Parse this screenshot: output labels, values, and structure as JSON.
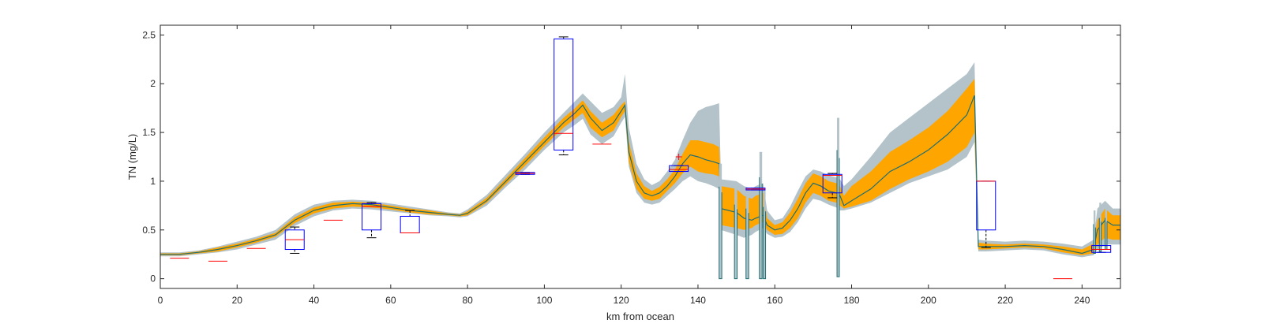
{
  "chart_data": {
    "type": "line",
    "xlabel": "km from ocean",
    "ylabel": "TN (mg/L)",
    "xlim": [
      0,
      250
    ],
    "ylim": [
      -0.1,
      2.6
    ],
    "xticks": [
      0,
      20,
      40,
      60,
      80,
      100,
      120,
      140,
      160,
      180,
      200,
      220,
      240
    ],
    "yticks": [
      0,
      0.5,
      1,
      1.5,
      2,
      2.5
    ],
    "ytick_labels": [
      "0",
      "0.5",
      "1",
      "1.5",
      "2",
      "2.5"
    ],
    "grid": false,
    "colors": {
      "outer_band": "#b3c3c9",
      "inner_band": "#ffa500",
      "median_line": "#1e6e72",
      "box": "#0000ff",
      "box_median": "#ff0000",
      "whisker": "#000000",
      "outlier": "#ff0000"
    },
    "model": {
      "x": [
        0,
        5,
        10,
        15,
        20,
        25,
        30,
        35,
        40,
        45,
        50,
        55,
        60,
        65,
        70,
        75,
        78,
        80,
        85,
        90,
        95,
        100,
        105,
        108,
        110,
        112,
        115,
        118,
        120,
        121,
        122,
        124,
        126,
        128,
        130,
        132,
        134,
        136,
        138,
        140,
        142,
        144,
        145.5,
        146,
        150,
        152,
        154,
        155,
        157,
        158,
        160,
        162,
        164,
        166,
        168,
        170,
        172,
        174,
        176,
        177,
        178,
        180,
        185,
        190,
        195,
        200,
        205,
        210,
        212,
        213,
        215,
        220,
        225,
        230,
        235,
        240,
        243,
        244,
        246,
        248,
        250
      ],
      "median": [
        0.25,
        0.25,
        0.27,
        0.3,
        0.34,
        0.39,
        0.45,
        0.6,
        0.7,
        0.75,
        0.77,
        0.76,
        0.73,
        0.7,
        0.68,
        0.66,
        0.65,
        0.67,
        0.8,
        1.0,
        1.2,
        1.4,
        1.6,
        1.7,
        1.78,
        1.65,
        1.52,
        1.6,
        1.72,
        1.78,
        1.3,
        1.0,
        0.88,
        0.85,
        0.88,
        0.95,
        1.05,
        1.18,
        1.27,
        1.25,
        1.22,
        1.2,
        1.18,
        0.72,
        0.68,
        0.62,
        0.6,
        0.62,
        0.65,
        0.55,
        0.5,
        0.52,
        0.6,
        0.72,
        0.88,
        0.98,
        0.95,
        0.9,
        0.88,
        0.85,
        0.75,
        0.8,
        0.92,
        1.1,
        1.2,
        1.32,
        1.48,
        1.68,
        1.88,
        0.33,
        0.33,
        0.33,
        0.34,
        0.33,
        0.3,
        0.26,
        0.3,
        0.5,
        0.6,
        0.55,
        0.55
      ],
      "inner_low": [
        0.24,
        0.24,
        0.26,
        0.28,
        0.32,
        0.37,
        0.43,
        0.57,
        0.67,
        0.72,
        0.74,
        0.73,
        0.71,
        0.68,
        0.66,
        0.65,
        0.64,
        0.65,
        0.78,
        0.97,
        1.16,
        1.36,
        1.55,
        1.64,
        1.7,
        1.55,
        1.45,
        1.52,
        1.66,
        1.72,
        1.2,
        0.92,
        0.82,
        0.8,
        0.82,
        0.9,
        0.98,
        1.08,
        1.15,
        1.1,
        1.08,
        1.07,
        1.05,
        0.55,
        0.52,
        0.5,
        0.52,
        0.55,
        0.58,
        0.5,
        0.45,
        0.46,
        0.52,
        0.62,
        0.78,
        0.88,
        0.85,
        0.8,
        0.78,
        0.75,
        0.72,
        0.74,
        0.8,
        0.92,
        1.02,
        1.1,
        1.2,
        1.35,
        1.5,
        0.3,
        0.3,
        0.31,
        0.32,
        0.31,
        0.27,
        0.24,
        0.26,
        0.35,
        0.42,
        0.4,
        0.4
      ],
      "inner_high": [
        0.26,
        0.26,
        0.28,
        0.32,
        0.36,
        0.41,
        0.47,
        0.63,
        0.73,
        0.78,
        0.79,
        0.78,
        0.75,
        0.72,
        0.7,
        0.67,
        0.66,
        0.69,
        0.83,
        1.03,
        1.24,
        1.45,
        1.65,
        1.75,
        1.83,
        1.72,
        1.6,
        1.68,
        1.78,
        1.82,
        1.4,
        1.08,
        0.95,
        0.9,
        0.94,
        1.02,
        1.12,
        1.28,
        1.42,
        1.42,
        1.4,
        1.38,
        1.35,
        0.95,
        0.92,
        0.85,
        0.82,
        0.85,
        0.88,
        0.62,
        0.55,
        0.58,
        0.68,
        0.82,
        0.98,
        1.08,
        1.05,
        1.0,
        0.98,
        0.95,
        0.85,
        0.95,
        1.1,
        1.3,
        1.42,
        1.55,
        1.72,
        1.95,
        2.05,
        0.37,
        0.36,
        0.35,
        0.36,
        0.35,
        0.33,
        0.3,
        0.36,
        0.6,
        0.72,
        0.65,
        0.65
      ],
      "outer_low": [
        0.23,
        0.23,
        0.25,
        0.27,
        0.3,
        0.35,
        0.4,
        0.54,
        0.64,
        0.7,
        0.72,
        0.71,
        0.69,
        0.67,
        0.65,
        0.64,
        0.63,
        0.64,
        0.75,
        0.94,
        1.12,
        1.32,
        1.5,
        1.58,
        1.64,
        1.48,
        1.38,
        1.46,
        1.6,
        1.66,
        1.15,
        0.88,
        0.78,
        0.76,
        0.78,
        0.85,
        0.92,
        1.0,
        1.05,
        1.0,
        0.98,
        0.95,
        0.92,
        0.5,
        0.45,
        0.42,
        0.45,
        0.48,
        0.52,
        0.46,
        0.42,
        0.43,
        0.48,
        0.58,
        0.72,
        0.82,
        0.8,
        0.76,
        0.73,
        0.7,
        0.7,
        0.72,
        0.78,
        0.88,
        0.98,
        1.05,
        1.12,
        1.25,
        1.4,
        0.28,
        0.28,
        0.29,
        0.3,
        0.29,
        0.25,
        0.22,
        0.24,
        0.3,
        0.35,
        0.35,
        0.35
      ],
      "outer_high": [
        0.27,
        0.27,
        0.29,
        0.33,
        0.38,
        0.43,
        0.5,
        0.66,
        0.76,
        0.8,
        0.81,
        0.8,
        0.77,
        0.74,
        0.71,
        0.68,
        0.67,
        0.71,
        0.86,
        1.07,
        1.28,
        1.5,
        1.7,
        1.82,
        1.9,
        1.82,
        1.7,
        1.76,
        1.86,
        2.1,
        1.55,
        1.18,
        1.02,
        0.96,
        1.0,
        1.1,
        1.22,
        1.42,
        1.6,
        1.72,
        1.76,
        1.78,
        1.8,
        1.02,
        1.0,
        0.95,
        0.92,
        0.95,
        0.98,
        0.7,
        0.6,
        0.62,
        0.74,
        0.9,
        1.05,
        1.12,
        1.1,
        1.06,
        1.04,
        1.02,
        0.95,
        1.02,
        1.25,
        1.5,
        1.65,
        1.8,
        1.95,
        2.1,
        2.22,
        0.4,
        0.39,
        0.38,
        0.39,
        0.38,
        0.36,
        0.33,
        0.4,
        0.72,
        0.8,
        0.72,
        0.72
      ]
    },
    "boxes": [
      {
        "x": 35,
        "q1": 0.3,
        "median": 0.4,
        "q3": 0.5,
        "whisker_low": 0.26,
        "whisker_high": 0.53
      },
      {
        "x": 55,
        "q1": 0.5,
        "median": 0.74,
        "q3": 0.77,
        "whisker_low": 0.42,
        "whisker_high": 0.78
      },
      {
        "x": 65,
        "q1": 0.47,
        "median": 0.47,
        "q3": 0.64,
        "whisker_low": 0.47,
        "whisker_high": 0.7
      },
      {
        "x": 95,
        "q1": 1.07,
        "median": 1.08,
        "q3": 1.09,
        "whisker_low": 1.07,
        "whisker_high": 1.09
      },
      {
        "x": 105,
        "q1": 1.32,
        "median": 1.49,
        "q3": 2.46,
        "whisker_low": 1.27,
        "whisker_high": 2.48
      },
      {
        "x": 135,
        "q1": 1.1,
        "median": 1.12,
        "q3": 1.16,
        "whisker_low": 1.1,
        "whisker_high": 1.16
      },
      {
        "x": 155,
        "q1": 0.91,
        "median": 0.92,
        "q3": 0.93,
        "whisker_low": 0.91,
        "whisker_high": 0.93
      },
      {
        "x": 175,
        "q1": 0.88,
        "median": 1.06,
        "q3": 1.07,
        "whisker_low": 0.83,
        "whisker_high": 1.08
      },
      {
        "x": 215,
        "q1": 0.5,
        "median": 1.0,
        "q3": 1.0,
        "whisker_low": 0.32,
        "whisker_high": 1.0
      },
      {
        "x": 245,
        "q1": 0.27,
        "median": 0.3,
        "q3": 0.34,
        "whisker_low": 0.27,
        "whisker_high": 0.34
      }
    ],
    "single_obs": [
      {
        "x": 5,
        "y": 0.21
      },
      {
        "x": 15,
        "y": 0.18
      },
      {
        "x": 25,
        "y": 0.31
      },
      {
        "x": 45,
        "y": 0.6
      },
      {
        "x": 115,
        "y": 1.38
      },
      {
        "x": 235,
        "y": 0.0
      }
    ],
    "outliers": [
      {
        "x": 135,
        "y": 1.25
      }
    ],
    "spikes": [
      {
        "x0": 145.5,
        "x1": 146.2,
        "low": 0.0,
        "high": 1.18
      },
      {
        "x0": 149.5,
        "x1": 150.2,
        "low": 0.0,
        "high": 0.95
      },
      {
        "x0": 152.5,
        "x1": 153.2,
        "low": 0.0,
        "high": 0.9
      },
      {
        "x0": 156.0,
        "x1": 156.7,
        "low": 0.0,
        "high": 1.3
      },
      {
        "x0": 157.0,
        "x1": 157.6,
        "low": 0.0,
        "high": 0.92
      },
      {
        "x0": 176.2,
        "x1": 176.8,
        "low": 0.02,
        "high": 1.65
      },
      {
        "x0": 243.0,
        "x1": 243.5,
        "low": 0.26,
        "high": 0.7
      },
      {
        "x0": 244.5,
        "x1": 245.0,
        "low": 0.28,
        "high": 0.78
      },
      {
        "x0": 246.0,
        "x1": 246.5,
        "low": 0.3,
        "high": 0.78
      }
    ]
  }
}
